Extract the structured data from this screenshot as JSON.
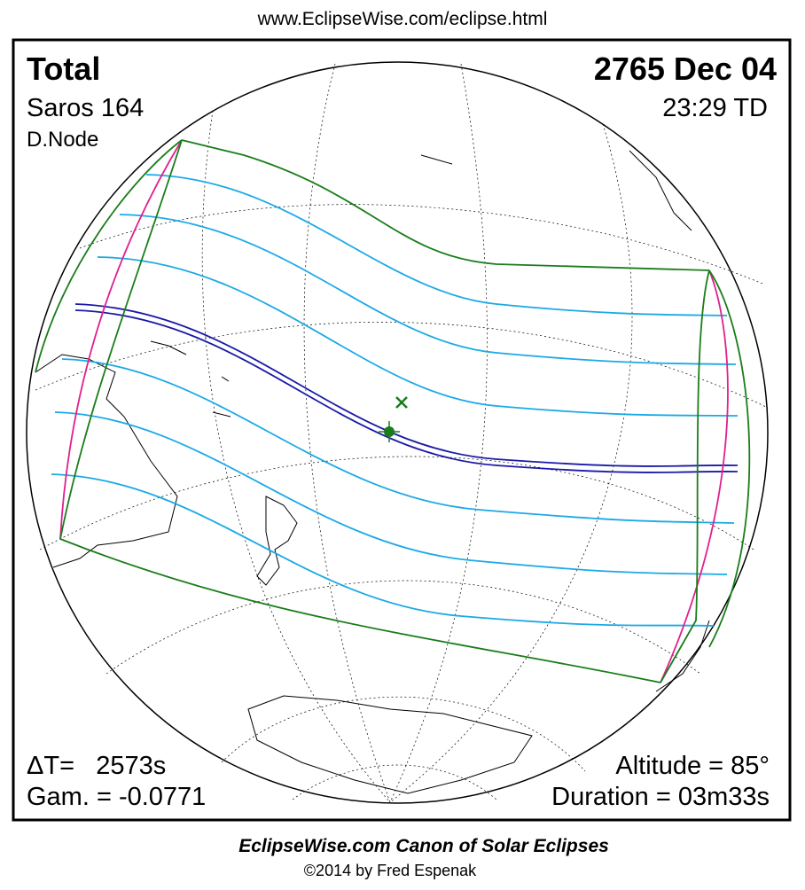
{
  "header": {
    "url": "www.EclipseWise.com/eclipse.html"
  },
  "panel": {
    "eclipse_type": "Total",
    "date": "2765 Dec 04",
    "saros": "Saros 164",
    "time": "23:29 TD",
    "node": "D.Node",
    "delta_t": "ΔT=   2573s",
    "gamma": "Gam. = -0.0771",
    "altitude": "Altitude = 85°",
    "duration": "Duration = 03m33s"
  },
  "footer": {
    "title": "EclipseWise.com Canon of Solar Eclipses",
    "credit": "©2014 by Fred Espenak"
  }
}
